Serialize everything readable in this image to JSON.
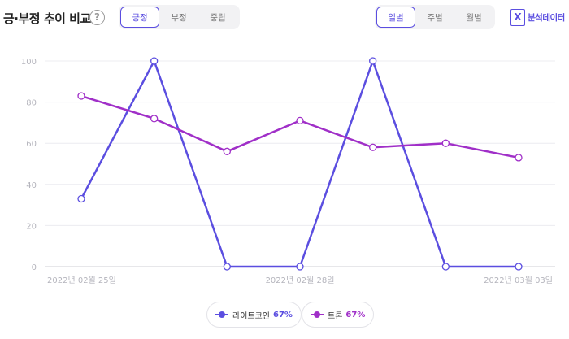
{
  "header": {
    "title": "긍·부정 추이 비교",
    "help_icon": "?",
    "sentiment_tabs": [
      "긍정",
      "부정",
      "중립"
    ],
    "sentiment_selected": "긍정",
    "period_tabs": [
      "일별",
      "주별",
      "월별"
    ],
    "period_selected": "일별",
    "export_label": "분석데이터",
    "export_icon": "excel-icon"
  },
  "colors": {
    "accent": "#5b4ee0",
    "series1": "#5b4ee0",
    "series2": "#a02fc8"
  },
  "chart_data": {
    "type": "line",
    "title": "",
    "xlabel": "",
    "ylabel": "",
    "x": [
      "2022-02-25",
      "2022-02-26",
      "2022-02-27",
      "2022-02-28",
      "2022-03-01",
      "2022-03-02",
      "2022-03-03"
    ],
    "x_tick_labels": [
      {
        "index": 0,
        "label": "2022년 02월 25일"
      },
      {
        "index": 3,
        "label": "2022년 02월 28일"
      },
      {
        "index": 6,
        "label": "2022년 03월 03일"
      }
    ],
    "ylim": [
      0,
      100
    ],
    "yticks": [
      0,
      20,
      40,
      60,
      80,
      100
    ],
    "grid": true,
    "series": [
      {
        "name": "라이트코인",
        "percent": "67%",
        "color": "#5b4ee0",
        "values": [
          33,
          100,
          0,
          0,
          100,
          0,
          0
        ]
      },
      {
        "name": "트론",
        "percent": "67%",
        "color": "#a02fc8",
        "values": [
          83,
          72,
          56,
          71,
          58,
          60,
          53
        ]
      }
    ],
    "legend_position": "bottom-center"
  }
}
